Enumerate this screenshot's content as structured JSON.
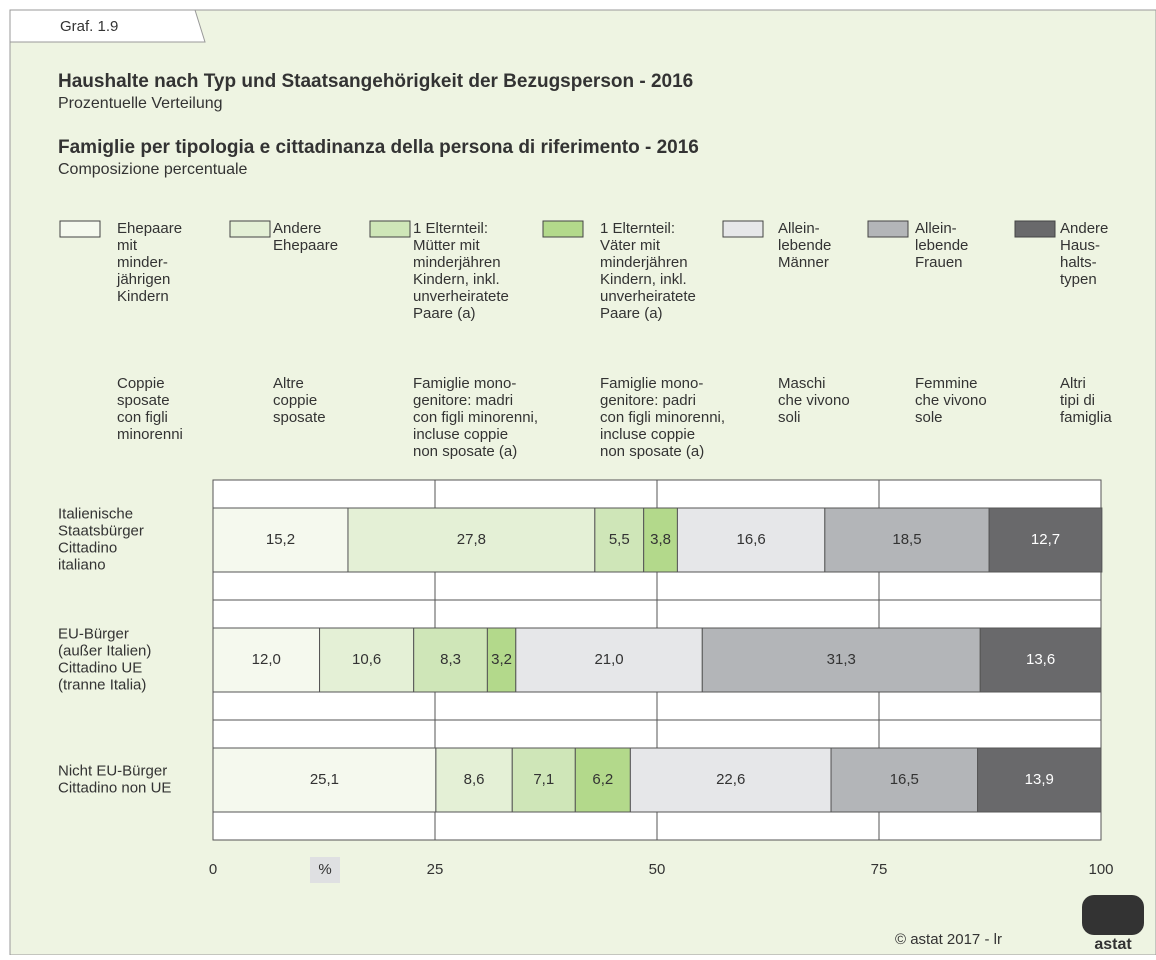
{
  "chart_data": {
    "type": "bar",
    "orientation": "horizontal",
    "stacked": true,
    "tab": "Graf. 1.9",
    "title": "Haushalte nach Typ und Staatsangehörigkeit der Bezugsperson - 2016",
    "subtitle": "Prozentuelle Verteilung",
    "title_it": "Famiglie per tipologia e cittadinanza della persona di riferimento - 2016",
    "subtitle_it": "Composizione percentuale",
    "xlabel": "%",
    "copyright": "© astat 2017 - lr",
    "logo": "astat",
    "xlim": [
      0,
      100
    ],
    "xticks": [
      0,
      25,
      50,
      75,
      100
    ],
    "grid": true,
    "categories": [
      [
        "Italienische",
        "Staatsbürger",
        "Cittadino",
        "italiano"
      ],
      [
        "EU-Bürger",
        "(außer Italien)",
        "Cittadino UE",
        "(tranne Italia)"
      ],
      [
        "Nicht EU-Bürger",
        "Cittadino non UE"
      ]
    ],
    "series": [
      {
        "name": [
          "Ehepaare",
          "mit",
          "minder-",
          "jährigen",
          "Kindern"
        ],
        "name_it": [
          "Coppie",
          "sposate",
          "con figli",
          "minorenni"
        ],
        "color": "#f5f9ee",
        "label_color": "#333333",
        "values": [
          15.2,
          12.0,
          25.1
        ],
        "value_labels": [
          "15,2",
          "12,0",
          "25,1"
        ]
      },
      {
        "name": [
          "Andere",
          "Ehepaare"
        ],
        "name_it": [
          "Altre",
          "coppie",
          "sposate"
        ],
        "color": "#e4f0d6",
        "label_color": "#333333",
        "values": [
          27.8,
          10.6,
          8.6
        ],
        "value_labels": [
          "27,8",
          "10,6",
          "8,6"
        ]
      },
      {
        "name": [
          "1 Elternteil:",
          "Mütter mit",
          "minderjähren",
          "Kindern, inkl.",
          "unverheiratete",
          "Paare (a)"
        ],
        "name_it": [
          "Famiglie mono-",
          "genitore: madri",
          "con figli minorenni,",
          "incluse coppie",
          "non sposate (a)"
        ],
        "color": "#cfe6b8",
        "label_color": "#333333",
        "values": [
          5.5,
          8.3,
          7.1
        ],
        "value_labels": [
          "5,5",
          "8,3",
          "7,1"
        ]
      },
      {
        "name": [
          "1 Elternteil:",
          "Väter mit",
          "minderjähren",
          "Kindern, inkl.",
          "unverheiratete",
          "Paare (a)"
        ],
        "name_it": [
          "Famiglie mono-",
          "genitore: padri",
          "con figli minorenni,",
          "incluse coppie",
          "non sposate (a)"
        ],
        "color": "#b3d98b",
        "label_color": "#333333",
        "values": [
          3.8,
          3.2,
          6.2
        ],
        "value_labels": [
          "3,8",
          "3,2",
          "6,2"
        ]
      },
      {
        "name": [
          "Allein-",
          "lebende",
          "Männer"
        ],
        "name_it": [
          "Maschi",
          "che vivono",
          "soli"
        ],
        "color": "#e6e7e9",
        "label_color": "#333333",
        "values": [
          16.6,
          21.0,
          22.6
        ],
        "value_labels": [
          "16,6",
          "21,0",
          "22,6"
        ]
      },
      {
        "name": [
          "Allein-",
          "lebende",
          "Frauen"
        ],
        "name_it": [
          "Femmine",
          "che vivono",
          "sole"
        ],
        "color": "#b3b5b8",
        "label_color": "#333333",
        "values": [
          18.5,
          31.3,
          16.5
        ],
        "value_labels": [
          "18,5",
          "31,3",
          "16,5"
        ]
      },
      {
        "name": [
          "Andere",
          "Haus-",
          "halts-",
          "typen"
        ],
        "name_it": [
          "Altri",
          "tipi di",
          "famiglia"
        ],
        "color": "#69696b",
        "label_color": "#ffffff",
        "values": [
          12.7,
          13.6,
          13.9
        ],
        "value_labels": [
          "12,7",
          "13,6",
          "13,9"
        ]
      }
    ]
  }
}
